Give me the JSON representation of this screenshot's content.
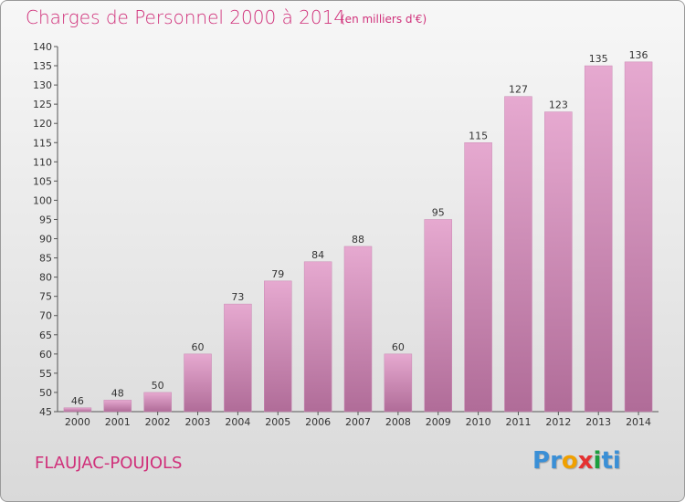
{
  "header": {
    "title": "Charges de Personnel 2000 à 2014",
    "unit": "(en milliers d'€)"
  },
  "footer": {
    "commune": "FLAUJAC-POUJOLS",
    "logo_letters": [
      "P",
      "r",
      "o",
      "x",
      "i",
      "t",
      "i"
    ],
    "logo_colors": [
      "#3a8fd6",
      "#3a8fd6",
      "#f0a000",
      "#e53030",
      "#1b9e3e",
      "#3a8fd6",
      "#3a8fd6"
    ]
  },
  "colors": {
    "title": "#d0307a",
    "bar_light": "#e6a9d0",
    "bar_dark": "#b06c98"
  },
  "chart_data": {
    "type": "bar",
    "title": "Charges de Personnel 2000 à 2014",
    "subtitle": "(en milliers d'€)",
    "categories": [
      "2000",
      "2001",
      "2002",
      "2003",
      "2004",
      "2005",
      "2006",
      "2007",
      "2008",
      "2009",
      "2010",
      "2011",
      "2012",
      "2013",
      "2014"
    ],
    "values": [
      46,
      48,
      50,
      60,
      73,
      79,
      84,
      88,
      60,
      95,
      115,
      127,
      123,
      135,
      136
    ],
    "ylim": [
      45,
      140
    ],
    "yticks": [
      45,
      50,
      55,
      60,
      65,
      70,
      75,
      80,
      85,
      90,
      95,
      100,
      105,
      110,
      115,
      120,
      125,
      130,
      135,
      140
    ],
    "grid": false,
    "legend": "none"
  }
}
